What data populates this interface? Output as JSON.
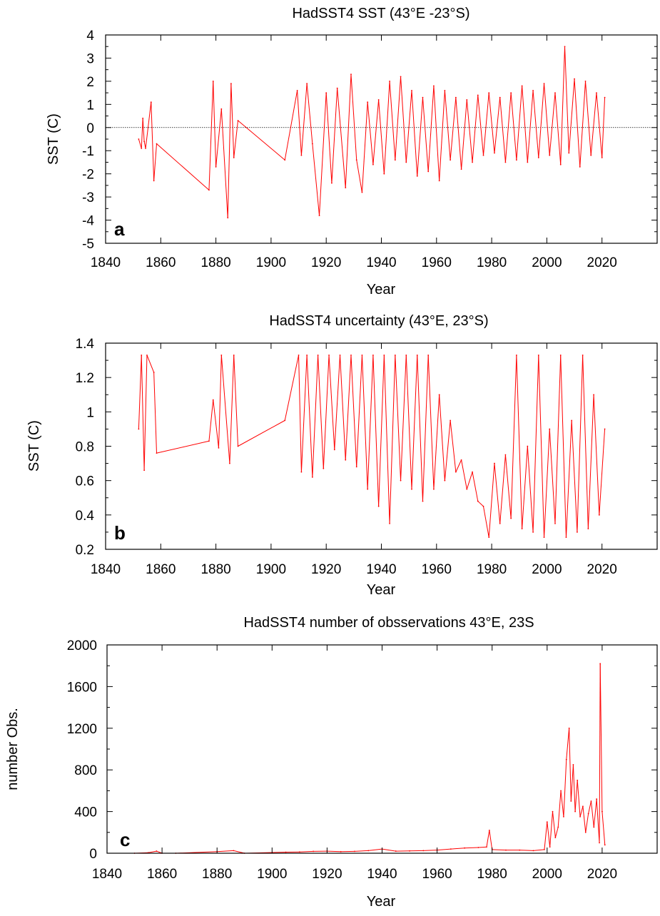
{
  "chart_data": [
    {
      "type": "line",
      "panel_label": "a",
      "title": "HadSST4 SST (43°E -23°S)",
      "xlabel": "Year",
      "ylabel": "SST (C)",
      "xlim": [
        1840,
        2040
      ],
      "ylim": [
        -5,
        4
      ],
      "x_ticks": [
        1840,
        1860,
        1880,
        1900,
        1920,
        1940,
        1960,
        1980,
        2000,
        2020
      ],
      "y_ticks": [
        -5,
        -4,
        -3,
        -2,
        -1,
        0,
        1,
        2,
        3,
        4
      ],
      "zero_line": true,
      "colors": {
        "series": "#ff0000"
      },
      "series": [
        {
          "x": [
            1852.0,
            1853.0,
            1853.5,
            1854.0,
            1854.5,
            1856.5,
            1857.5,
            1858.5,
            1877.5,
            1879.0,
            1880.0,
            1882.0,
            1884.3,
            1885.5,
            1886.5,
            1888.0,
            1905.0,
            1909.5,
            1911.0,
            1913.0,
            1915.0,
            1917.5,
            1920.0,
            1922.0,
            1924.0,
            1927.0,
            1929.0,
            1931.0,
            1933.0,
            1935.0,
            1937.0,
            1939.0,
            1941.0,
            1943.0,
            1945.0,
            1947.0,
            1949.0,
            1951.0,
            1953.0,
            1955.0,
            1957.0,
            1959.0,
            1961.0,
            1963.0,
            1965.0,
            1967.0,
            1969.0,
            1971.0,
            1973.0,
            1975.0,
            1977.0,
            1979.0,
            1981.0,
            1983.0,
            1985.0,
            1987.0,
            1989.0,
            1991.0,
            1993.0,
            1995.0,
            1997.0,
            1999.0,
            2001.0,
            2003.0,
            2005.0,
            2006.5,
            2008.0,
            2010.0,
            2012.0,
            2014.0,
            2016.0,
            2018.0,
            2020.0,
            2021.0
          ],
          "y": [
            -0.5,
            -0.9,
            0.4,
            -0.6,
            -0.9,
            1.1,
            -2.3,
            -0.7,
            -2.7,
            2.0,
            -1.7,
            0.8,
            -3.9,
            1.9,
            -1.3,
            0.3,
            -1.4,
            1.6,
            -1.2,
            1.9,
            -0.7,
            -3.8,
            1.5,
            -2.4,
            1.7,
            -2.6,
            2.3,
            -1.4,
            -2.8,
            1.1,
            -1.6,
            1.2,
            -2.0,
            2.0,
            -1.4,
            2.2,
            -1.5,
            1.6,
            -2.1,
            1.3,
            -1.9,
            1.8,
            -2.3,
            1.6,
            -1.4,
            1.3,
            -1.8,
            1.2,
            -1.5,
            1.4,
            -1.2,
            1.5,
            -1.1,
            1.3,
            -1.5,
            1.5,
            -1.4,
            1.8,
            -1.5,
            1.6,
            -1.3,
            1.9,
            -1.2,
            1.5,
            -1.6,
            3.5,
            -1.1,
            2.1,
            -1.7,
            2.0,
            -1.2,
            1.5,
            -1.3,
            1.3
          ]
        }
      ]
    },
    {
      "type": "line",
      "panel_label": "b",
      "title": "HadSST4 uncertainty (43°E, 23°S)",
      "xlabel": "Year",
      "ylabel": "SST (C)",
      "xlim": [
        1840,
        2040
      ],
      "ylim": [
        0.2,
        1.4
      ],
      "x_ticks": [
        1840,
        1860,
        1880,
        1900,
        1920,
        1940,
        1960,
        1980,
        2000,
        2020
      ],
      "y_ticks": [
        0.2,
        0.4,
        0.6,
        0.8,
        1,
        1.2,
        1.4
      ],
      "colors": {
        "series": "#ff0000"
      },
      "series": [
        {
          "x": [
            1852.0,
            1853.0,
            1854.0,
            1855.0,
            1857.5,
            1858.5,
            1877.5,
            1879.0,
            1881.0,
            1882.0,
            1885.0,
            1886.5,
            1888.0,
            1905.0,
            1910.0,
            1911.0,
            1913.0,
            1915.0,
            1917.0,
            1919.0,
            1921.0,
            1923.0,
            1925.0,
            1927.0,
            1929.0,
            1931.0,
            1933.0,
            1935.0,
            1937.0,
            1939.0,
            1941.0,
            1943.0,
            1945.0,
            1947.0,
            1949.0,
            1951.0,
            1953.0,
            1955.0,
            1957.0,
            1959.0,
            1961.0,
            1963.0,
            1965.0,
            1967.0,
            1969.0,
            1971.0,
            1973.0,
            1975.0,
            1977.0,
            1979.0,
            1981.0,
            1983.0,
            1985.0,
            1987.0,
            1989.0,
            1991.0,
            1993.0,
            1995.0,
            1997.0,
            1999.0,
            2001.0,
            2003.0,
            2005.0,
            2007.0,
            2009.0,
            2011.0,
            2013.0,
            2015.0,
            2017.0,
            2019.0,
            2021.0
          ],
          "y": [
            0.9,
            1.33,
            0.66,
            1.33,
            1.23,
            0.76,
            0.83,
            1.07,
            0.79,
            1.33,
            0.7,
            1.33,
            0.8,
            0.95,
            1.33,
            0.65,
            1.33,
            0.62,
            1.33,
            0.67,
            1.33,
            0.78,
            1.33,
            0.72,
            1.33,
            0.68,
            1.33,
            0.55,
            1.33,
            0.45,
            1.33,
            0.35,
            1.33,
            0.6,
            1.33,
            0.55,
            1.33,
            0.48,
            1.33,
            0.55,
            1.1,
            0.6,
            0.95,
            0.65,
            0.72,
            0.55,
            0.65,
            0.48,
            0.45,
            0.27,
            0.7,
            0.35,
            0.75,
            0.38,
            1.33,
            0.32,
            0.8,
            0.3,
            1.33,
            0.27,
            0.9,
            0.35,
            1.33,
            0.27,
            0.95,
            0.3,
            1.33,
            0.32,
            1.1,
            0.4,
            0.9
          ]
        }
      ]
    },
    {
      "type": "line",
      "panel_label": "c",
      "title": "HadSST4 number of obsservations 43°E, 23S",
      "xlabel": "Year",
      "ylabel": "number Obs.",
      "xlim": [
        1840,
        2040
      ],
      "ylim": [
        0,
        2000
      ],
      "x_ticks": [
        1840,
        1860,
        1880,
        1900,
        1920,
        1940,
        1960,
        1980,
        2000,
        2020
      ],
      "y_ticks": [
        0,
        400,
        800,
        1200,
        1600,
        2000
      ],
      "colors": {
        "series": "#ff0000"
      },
      "series": [
        {
          "x": [
            1850.0,
            1855.0,
            1858.0,
            1860.0,
            1865.0,
            1880.0,
            1886.0,
            1890.0,
            1905.0,
            1910.0,
            1915.0,
            1920.0,
            1925.0,
            1930.0,
            1935.0,
            1940.0,
            1945.0,
            1950.0,
            1955.0,
            1960.0,
            1965.0,
            1970.0,
            1975.0,
            1978.0,
            1979.0,
            1980.0,
            1985.0,
            1990.0,
            1995.0,
            1999.0,
            2000.0,
            2001.0,
            2002.0,
            2003.0,
            2004.0,
            2005.0,
            2006.0,
            2007.0,
            2008.0,
            2008.7,
            2009.5,
            2010.2,
            2011.0,
            2012.0,
            2013.0,
            2014.0,
            2015.0,
            2016.0,
            2017.0,
            2018.0,
            2019.0,
            2019.3,
            2020.0,
            2021.0
          ],
          "y": [
            0,
            5,
            20,
            0,
            0,
            15,
            25,
            0,
            10,
            12,
            18,
            20,
            15,
            18,
            25,
            40,
            20,
            22,
            25,
            30,
            40,
            50,
            55,
            60,
            220,
            35,
            30,
            30,
            25,
            35,
            300,
            60,
            400,
            150,
            250,
            600,
            350,
            900,
            1200,
            500,
            850,
            400,
            700,
            350,
            450,
            200,
            380,
            500,
            250,
            520,
            100,
            1820,
            400,
            80
          ]
        }
      ]
    }
  ]
}
